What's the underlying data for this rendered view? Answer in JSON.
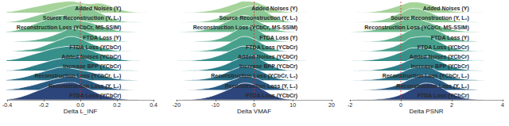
{
  "chart_data": [
    {
      "type": "ridgeline",
      "xlabel": "Delta L_INF",
      "x": [
        -0.4,
        -0.35,
        -0.3,
        -0.25,
        -0.2,
        -0.15,
        -0.1,
        -0.05,
        0,
        0.05,
        0.1,
        0.15,
        0.2,
        0.25,
        0.3,
        0.35,
        0.4
      ],
      "xlim": [
        -0.4,
        0.4
      ],
      "xticks": [
        -0.4,
        -0.2,
        {
          "value": 0,
          "label": "0.0"
        },
        0.2,
        0.4
      ],
      "ylim": [
        0,
        1
      ],
      "tick_labels": "x",
      "vline": 0,
      "series": [
        {
          "name": "Added Noises (Y)",
          "color": "#a6d39a",
          "values": [
            0.05,
            0.15,
            0.3,
            0.45,
            0.6,
            0.75,
            0.85,
            0.9,
            0.8,
            0.7,
            0.75,
            0.6,
            0.35,
            0.15,
            0.05,
            0.02,
            0
          ]
        },
        {
          "name": "Source Reconstruction (Y, L₁)",
          "color": "#8cc895",
          "values": [
            0.02,
            0.08,
            0.2,
            0.35,
            0.5,
            0.65,
            0.8,
            0.95,
            1,
            0.85,
            0.6,
            0.35,
            0.15,
            0.05,
            0.02,
            0,
            0
          ]
        },
        {
          "name": "Reconstruction Loss (YCbCr, MS-SSIM)",
          "color": "#72bc91",
          "values": [
            0.03,
            0.1,
            0.25,
            0.45,
            0.65,
            0.85,
            0.95,
            0.8,
            0.65,
            0.55,
            0.4,
            0.25,
            0.1,
            0.04,
            0.01,
            0,
            0
          ]
        },
        {
          "name": "FTDA Loss (Y)",
          "color": "#5aae8e",
          "values": [
            0,
            0.02,
            0.05,
            0.1,
            0.2,
            0.35,
            0.55,
            0.75,
            0.7,
            0.5,
            0.3,
            0.15,
            0.06,
            0.02,
            0,
            0,
            0
          ]
        },
        {
          "name": "FTDA Loss (YCbCr)",
          "color": "#46a08c",
          "values": [
            0,
            0.03,
            0.08,
            0.15,
            0.3,
            0.5,
            0.7,
            0.85,
            0.75,
            0.5,
            0.3,
            0.15,
            0.05,
            0.02,
            0,
            0,
            0
          ]
        },
        {
          "name": "Added Noises (YCbCr)",
          "color": "#378f8a",
          "values": [
            0.05,
            0.12,
            0.25,
            0.4,
            0.55,
            0.7,
            0.8,
            0.85,
            0.8,
            0.65,
            0.45,
            0.3,
            0.15,
            0.06,
            0.02,
            0,
            0
          ]
        },
        {
          "name": "Increase BPP (YCbCr)",
          "color": "#2d7f88",
          "values": [
            0.02,
            0.06,
            0.15,
            0.3,
            0.45,
            0.6,
            0.7,
            0.75,
            0.8,
            0.6,
            0.4,
            0.2,
            0.08,
            0.03,
            0.01,
            0,
            0
          ]
        },
        {
          "name": "Reconstruction Loss (YCbCr, L₂)",
          "color": "#296e86",
          "values": [
            0.03,
            0.1,
            0.2,
            0.35,
            0.5,
            0.65,
            0.75,
            0.7,
            0.6,
            0.5,
            0.35,
            0.2,
            0.1,
            0.04,
            0.01,
            0,
            0
          ]
        },
        {
          "name": "Reconstruction Loss (Y, L₂)",
          "color": "#2a5b83",
          "values": [
            0.02,
            0.08,
            0.18,
            0.3,
            0.45,
            0.6,
            0.72,
            0.8,
            0.7,
            0.55,
            0.35,
            0.2,
            0.08,
            0.03,
            0.01,
            0,
            0
          ]
        },
        {
          "name": "FTDA Loss (YCbCr)",
          "color": "#2c457a",
          "values": [
            0.02,
            0.1,
            0.25,
            0.45,
            0.65,
            0.85,
            0.95,
            1,
            0.85,
            0.6,
            0.35,
            0.18,
            0.08,
            0.03,
            0.01,
            0,
            0
          ]
        }
      ]
    },
    {
      "type": "ridgeline",
      "xlabel": "Delta VMAF",
      "x": [
        -20,
        -17.5,
        -15,
        -12.5,
        -10,
        -7.5,
        -5,
        -2.5,
        0,
        2.5,
        5,
        7.5,
        10,
        12.5,
        15,
        17.5,
        20
      ],
      "xlim": [
        -20,
        20
      ],
      "xticks": [
        -20,
        -10,
        0,
        10,
        20
      ],
      "ylim": [
        0,
        1
      ],
      "tick_labels": "x",
      "vline": 0,
      "series": [
        {
          "name": "Added Noises (Y)",
          "color": "#a6d39a",
          "values": [
            0,
            0.02,
            0.05,
            0.12,
            0.25,
            0.45,
            0.7,
            0.9,
            0.85,
            0.6,
            0.3,
            0.12,
            0.04,
            0.01,
            0,
            0,
            0
          ]
        },
        {
          "name": "Source Reconstruction (Y, L₁)",
          "color": "#8cc895",
          "values": [
            0,
            0.01,
            0.03,
            0.08,
            0.2,
            0.4,
            0.65,
            0.85,
            0.95,
            0.7,
            0.35,
            0.12,
            0.03,
            0.01,
            0,
            0,
            0
          ]
        },
        {
          "name": "Reconstruction Loss (YCbCr, MS-SSIM)",
          "color": "#72bc91",
          "values": [
            0,
            0.02,
            0.06,
            0.15,
            0.3,
            0.55,
            0.8,
            0.95,
            0.75,
            0.45,
            0.2,
            0.07,
            0.02,
            0,
            0,
            0,
            0
          ]
        },
        {
          "name": "FTDA Loss (Y)",
          "color": "#5aae8e",
          "values": [
            0,
            0,
            0.02,
            0.05,
            0.12,
            0.3,
            0.6,
            0.9,
            0.8,
            0.45,
            0.15,
            0.04,
            0.01,
            0,
            0,
            0,
            0
          ]
        },
        {
          "name": "FTDA Loss (YCbCr)",
          "color": "#46a08c",
          "values": [
            0,
            0,
            0.02,
            0.06,
            0.15,
            0.35,
            0.65,
            0.85,
            0.7,
            0.4,
            0.15,
            0.04,
            0.01,
            0,
            0,
            0,
            0
          ]
        },
        {
          "name": "Added Noises (YCbCr)",
          "color": "#378f8a",
          "values": [
            0,
            0.02,
            0.05,
            0.12,
            0.25,
            0.45,
            0.7,
            0.85,
            0.75,
            0.5,
            0.25,
            0.1,
            0.03,
            0.01,
            0,
            0,
            0
          ]
        },
        {
          "name": "Increase BPP (YCbCr)",
          "color": "#2d7f88",
          "values": [
            0,
            0.01,
            0.03,
            0.08,
            0.18,
            0.35,
            0.6,
            0.8,
            0.85,
            0.55,
            0.25,
            0.08,
            0.02,
            0,
            0,
            0,
            0
          ]
        },
        {
          "name": "Reconstruction Loss (YCbCr, L₂)",
          "color": "#296e86",
          "values": [
            0,
            0.01,
            0.04,
            0.1,
            0.22,
            0.42,
            0.65,
            0.8,
            0.7,
            0.45,
            0.2,
            0.07,
            0.02,
            0,
            0,
            0,
            0
          ]
        },
        {
          "name": "Reconstruction Loss (Y, L₂)",
          "color": "#2a5b83",
          "values": [
            0,
            0.01,
            0.03,
            0.09,
            0.2,
            0.4,
            0.62,
            0.78,
            0.72,
            0.48,
            0.22,
            0.08,
            0.02,
            0,
            0,
            0,
            0
          ]
        },
        {
          "name": "FTDA Loss (YCbCr)",
          "color": "#2c457a",
          "values": [
            0,
            0.01,
            0.04,
            0.12,
            0.28,
            0.5,
            0.75,
            0.95,
            0.85,
            0.55,
            0.25,
            0.08,
            0.02,
            0,
            0,
            0,
            0
          ]
        }
      ]
    },
    {
      "type": "ridgeline",
      "xlabel": "Delta PSNR",
      "x": [
        -2,
        -1.5,
        -1,
        -0.5,
        0,
        0.5,
        1,
        1.5,
        2,
        2.5,
        3,
        3.5,
        4
      ],
      "xlim": [
        -2,
        4
      ],
      "xticks": [
        -2,
        0,
        2,
        4
      ],
      "ylim": [
        0,
        1
      ],
      "tick_labels": "x",
      "vline": 0,
      "series": [
        {
          "name": "Added Noises (Y)",
          "color": "#a6d39a",
          "values": [
            0,
            0.03,
            0.1,
            0.3,
            0.6,
            0.85,
            0.7,
            0.4,
            0.15,
            0.05,
            0.01,
            0,
            0
          ]
        },
        {
          "name": "Source Reconstruction (Y, L₁)",
          "color": "#8cc895",
          "values": [
            0,
            0.02,
            0.08,
            0.25,
            0.55,
            0.8,
            0.65,
            0.35,
            0.12,
            0.04,
            0.01,
            0,
            0
          ]
        },
        {
          "name": "Reconstruction Loss (YCbCr, MS-SSIM)",
          "color": "#72bc91",
          "values": [
            0,
            0.05,
            0.15,
            0.35,
            0.65,
            0.8,
            0.6,
            0.35,
            0.15,
            0.05,
            0.01,
            0,
            0
          ]
        },
        {
          "name": "FTDA Loss (Y)",
          "color": "#5aae8e",
          "values": [
            0,
            0.01,
            0.04,
            0.15,
            0.4,
            0.75,
            0.9,
            0.6,
            0.25,
            0.08,
            0.02,
            0,
            0
          ]
        },
        {
          "name": "FTDA Loss (YCbCr)",
          "color": "#46a08c",
          "values": [
            0,
            0.01,
            0.05,
            0.18,
            0.45,
            0.8,
            0.85,
            0.55,
            0.22,
            0.07,
            0.02,
            0,
            0
          ]
        },
        {
          "name": "Added Noises (YCbCr)",
          "color": "#378f8a",
          "values": [
            0,
            0.03,
            0.1,
            0.25,
            0.5,
            0.75,
            0.7,
            0.45,
            0.2,
            0.07,
            0.02,
            0,
            0
          ]
        },
        {
          "name": "Increase BPP (YCbCr)",
          "color": "#2d7f88",
          "values": [
            0,
            0.02,
            0.06,
            0.18,
            0.4,
            0.7,
            0.8,
            0.55,
            0.25,
            0.08,
            0.02,
            0,
            0
          ]
        },
        {
          "name": "Reconstruction Loss (YCbCr, L₂)",
          "color": "#296e86",
          "values": [
            0,
            0.02,
            0.07,
            0.2,
            0.45,
            0.72,
            0.78,
            0.5,
            0.22,
            0.07,
            0.02,
            0,
            0
          ]
        },
        {
          "name": "Reconstruction Loss (Y, L₂)",
          "color": "#2a5b83",
          "values": [
            0,
            0.01,
            0.05,
            0.15,
            0.38,
            0.7,
            0.85,
            0.6,
            0.25,
            0.08,
            0.02,
            0,
            0
          ]
        },
        {
          "name": "FTDA Loss (YCbCr)",
          "color": "#2c457a",
          "values": [
            0,
            0.01,
            0.03,
            0.1,
            0.3,
            0.65,
            0.95,
            0.75,
            0.35,
            0.1,
            0.02,
            0,
            0
          ]
        }
      ]
    }
  ]
}
